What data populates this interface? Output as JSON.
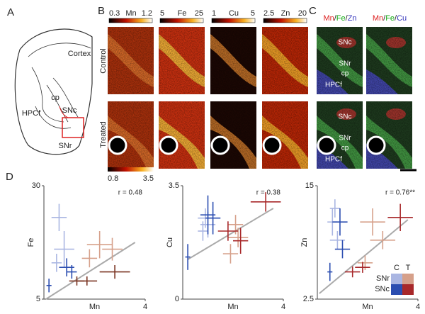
{
  "panels": [
    "A",
    "B",
    "C",
    "D"
  ],
  "atlas": {
    "cortex": "Cortex",
    "cp": "cp",
    "hpcf": "HPCf",
    "snc": "SNc",
    "snr": "SNr"
  },
  "rows": [
    "Control",
    "Treated"
  ],
  "colorbars": [
    {
      "element": "Mn",
      "min": 0.3,
      "max": 1.2
    },
    {
      "element": "Fe",
      "min": 5,
      "max": 25
    },
    {
      "element": "Cu",
      "min": 1,
      "max": 5
    },
    {
      "element": "Zn",
      "min": 2.5,
      "max": 20
    }
  ],
  "treated_colorbar": {
    "min": 0.8,
    "max": 3.5
  },
  "overlays": [
    [
      "Mn",
      "/",
      "Fe",
      "/",
      "Zn"
    ],
    [
      "Mn",
      "/",
      "Fe",
      "/",
      "Cu"
    ]
  ],
  "overlay_labels": {
    "control": [
      "SNc",
      "SNr",
      "cp",
      "HPCf"
    ],
    "treated": [
      "SNc",
      "SNr",
      "cp",
      "HPCf"
    ]
  },
  "legend": {
    "columns": [
      "C",
      "T"
    ],
    "rows": [
      "SNr",
      "SNc"
    ]
  },
  "chart_data": [
    {
      "type": "scatter",
      "x_label": "Mn",
      "y_label": "Fe",
      "annotation": "r = 0.48",
      "xlim": [
        0,
        4
      ],
      "ylim": [
        5,
        30
      ],
      "xticks": [
        4
      ],
      "yticks": [
        5,
        30
      ],
      "series": [
        {
          "color": "#aab6e2",
          "x": [
            0.5,
            0.6,
            0.8
          ],
          "y": [
            13,
            23,
            16
          ],
          "xerr": [
            0.2,
            0.3,
            0.4
          ],
          "yerr": [
            2,
            3,
            4
          ]
        },
        {
          "color": "#2b4db0",
          "x": [
            0.9,
            1.1,
            0.2
          ],
          "y": [
            12,
            11,
            8
          ],
          "xerr": [
            0.3,
            0.2,
            0.1
          ],
          "yerr": [
            2,
            1.5,
            1.5
          ]
        },
        {
          "color": "#d6a08a",
          "x": [
            2.2,
            2.7,
            1.8
          ],
          "y": [
            17,
            16,
            14
          ],
          "xerr": [
            0.5,
            0.4,
            0.3
          ],
          "yerr": [
            3,
            2.5,
            2
          ]
        },
        {
          "color": "#7a3422",
          "x": [
            1.3,
            1.7,
            2.8
          ],
          "y": [
            9,
            9,
            11
          ],
          "xerr": [
            0.3,
            0.4,
            0.6
          ],
          "yerr": [
            1,
            1,
            1.5
          ]
        }
      ]
    },
    {
      "type": "scatter",
      "x_label": "Mn",
      "y_label": "Cu",
      "annotation": "r = 0.38",
      "xlim": [
        0,
        4
      ],
      "ylim": [
        0,
        3.5
      ],
      "xticks": [
        4
      ],
      "yticks": [
        0,
        3.5
      ],
      "series": [
        {
          "color": "#aab6e2",
          "x": [
            0.9,
            1,
            0.8
          ],
          "y": [
            2.5,
            2.3,
            2.1
          ],
          "xerr": [
            0.3,
            0.3,
            0.2
          ],
          "yerr": [
            0.3,
            0.4,
            0.3
          ]
        },
        {
          "color": "#2b4db0",
          "x": [
            1,
            1.2,
            0.2
          ],
          "y": [
            2.6,
            2.5,
            1.3
          ],
          "xerr": [
            0.3,
            0.3,
            0.1
          ],
          "yerr": [
            0.6,
            0.5,
            0.4
          ]
        },
        {
          "color": "#d6a08a",
          "x": [
            2.2,
            2.1,
            1.9
          ],
          "y": [
            1.9,
            2.3,
            1.4
          ],
          "xerr": [
            0.4,
            0.3,
            0.3
          ],
          "yerr": [
            0.3,
            0.3,
            0.3
          ]
        },
        {
          "color": "#a8282a",
          "x": [
            1.8,
            2.3,
            3.3
          ],
          "y": [
            2.1,
            1.8,
            3
          ],
          "xerr": [
            0.4,
            0.3,
            0.6
          ],
          "yerr": [
            0.3,
            0.4,
            0.3
          ]
        }
      ]
    },
    {
      "type": "scatter",
      "x_label": "Mn",
      "y_label": "Zn",
      "annotation": "r = 0.76**",
      "xlim": [
        0,
        4
      ],
      "ylim": [
        2.5,
        15
      ],
      "xticks": [
        4
      ],
      "yticks": [
        2.5,
        15
      ],
      "series": [
        {
          "color": "#aab6e2",
          "x": [
            0.6,
            0.8,
            0.7
          ],
          "y": [
            11,
            9,
            12.5
          ],
          "xerr": [
            0.2,
            0.3,
            0.2
          ],
          "yerr": [
            1.5,
            1,
            1
          ]
        },
        {
          "color": "#2b4db0",
          "x": [
            1,
            0.9,
            0.5
          ],
          "y": [
            8,
            11,
            5.5
          ],
          "xerr": [
            0.3,
            0.3,
            0.1
          ],
          "yerr": [
            1,
            1.5,
            1
          ]
        },
        {
          "color": "#d6a08a",
          "x": [
            2.2,
            2.6,
            1.9
          ],
          "y": [
            11,
            9,
            6.5
          ],
          "xerr": [
            0.5,
            0.5,
            0.3
          ],
          "yerr": [
            1.5,
            1,
            0.8
          ]
        },
        {
          "color": "#a8282a",
          "x": [
            1.4,
            1.8,
            3.3
          ],
          "y": [
            5.5,
            6,
            11.5
          ],
          "xerr": [
            0.3,
            0.3,
            0.5
          ],
          "yerr": [
            0.6,
            0.6,
            1.5
          ]
        }
      ]
    }
  ]
}
